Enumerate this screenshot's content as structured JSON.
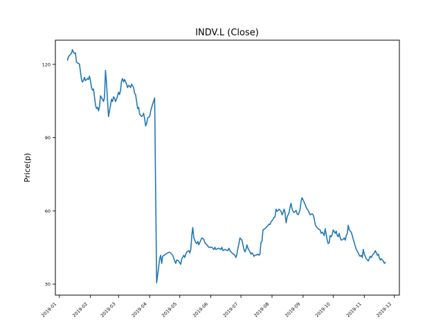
{
  "chart_data": {
    "type": "line",
    "title": "INDV.L (Close)",
    "xlabel": "",
    "ylabel": "Price(p)",
    "legend": "none",
    "grid": false,
    "background_color": "#ffffff",
    "line_color": "#1f77b4",
    "spine_color": "#000000",
    "ylim": [
      25.5,
      129.9
    ],
    "yticks": [
      30,
      60,
      90,
      120
    ],
    "ytick_labels": [
      "30",
      "60",
      "90",
      "120"
    ],
    "xlim": [
      "2018-12-28",
      "2019-12-06"
    ],
    "xticks": [
      "2019-01-01",
      "2019-02-01",
      "2019-03-01",
      "2019-04-01",
      "2019-05-01",
      "2019-06-01",
      "2019-07-01",
      "2019-08-01",
      "2019-09-01",
      "2019-10-01",
      "2019-11-01",
      "2019-12-01"
    ],
    "xtick_labels": [
      "2019-01",
      "2019-02",
      "2019-03",
      "2019-04",
      "2019-05",
      "2019-06",
      "2019-07",
      "2019-08",
      "2019-09",
      "2019-10",
      "2019-11",
      "2019-12"
    ],
    "xtick_rotation": 45,
    "points": [
      [
        "2019-01-09",
        121.7
      ],
      [
        "2019-01-10",
        123.1
      ],
      [
        "2019-01-11",
        123.6
      ],
      [
        "2019-01-13",
        124.5
      ],
      [
        "2019-01-14",
        126.0
      ],
      [
        "2019-01-15",
        125.0
      ],
      [
        "2019-01-16",
        124.5
      ],
      [
        "2019-01-17",
        124.7
      ],
      [
        "2019-01-18",
        121.0
      ],
      [
        "2019-01-19",
        120.6
      ],
      [
        "2019-01-21",
        120.1
      ],
      [
        "2019-01-22",
        117.0
      ],
      [
        "2019-01-23",
        113.9
      ],
      [
        "2019-01-24",
        112.7
      ],
      [
        "2019-01-25",
        113.5
      ],
      [
        "2019-01-26",
        114.7
      ],
      [
        "2019-01-27",
        113.3
      ],
      [
        "2019-01-29",
        114.2
      ],
      [
        "2019-01-30",
        113.8
      ],
      [
        "2019-01-31",
        115.2
      ],
      [
        "2019-02-01",
        113.3
      ],
      [
        "2019-02-02",
        110.5
      ],
      [
        "2019-02-03",
        109.5
      ],
      [
        "2019-02-04",
        109.9
      ],
      [
        "2019-02-06",
        103.3
      ],
      [
        "2019-02-07",
        101.9
      ],
      [
        "2019-02-08",
        102.4
      ],
      [
        "2019-02-09",
        101.0
      ],
      [
        "2019-02-10",
        102.9
      ],
      [
        "2019-02-11",
        107.1
      ],
      [
        "2019-02-13",
        105.7
      ],
      [
        "2019-02-14",
        104.8
      ],
      [
        "2019-02-15",
        106.7
      ],
      [
        "2019-02-16",
        117.5
      ],
      [
        "2019-02-17",
        112.3
      ],
      [
        "2019-02-18",
        105.4
      ],
      [
        "2019-02-19",
        98.6
      ],
      [
        "2019-02-20",
        101.0
      ],
      [
        "2019-02-21",
        103.3
      ],
      [
        "2019-02-22",
        105.7
      ],
      [
        "2019-02-23",
        104.8
      ],
      [
        "2019-02-24",
        106.7
      ],
      [
        "2019-02-25",
        106.2
      ],
      [
        "2019-02-26",
        104.8
      ],
      [
        "2019-02-27",
        105.7
      ],
      [
        "2019-03-01",
        108.6
      ],
      [
        "2019-03-02",
        107.6
      ],
      [
        "2019-03-03",
        109.5
      ],
      [
        "2019-03-04",
        113.3
      ],
      [
        "2019-03-05",
        114.2
      ],
      [
        "2019-03-06",
        112.8
      ],
      [
        "2019-03-07",
        113.8
      ],
      [
        "2019-03-09",
        111.9
      ],
      [
        "2019-03-10",
        110.5
      ],
      [
        "2019-03-11",
        111.4
      ],
      [
        "2019-03-12",
        111.1
      ],
      [
        "2019-03-13",
        110.5
      ],
      [
        "2019-03-14",
        111.9
      ],
      [
        "2019-03-16",
        110.5
      ],
      [
        "2019-03-17",
        108.1
      ],
      [
        "2019-03-18",
        107.6
      ],
      [
        "2019-03-19",
        104.8
      ],
      [
        "2019-03-20",
        101.9
      ],
      [
        "2019-03-21",
        102.4
      ],
      [
        "2019-03-22",
        99.6
      ],
      [
        "2019-03-24",
        98.6
      ],
      [
        "2019-03-25",
        99.1
      ],
      [
        "2019-03-26",
        100.0
      ],
      [
        "2019-03-27",
        97.7
      ],
      [
        "2019-03-28",
        94.8
      ],
      [
        "2019-03-29",
        95.8
      ],
      [
        "2019-03-30",
        98.1
      ],
      [
        "2019-04-01",
        98.6
      ],
      [
        "2019-04-02",
        101.0
      ],
      [
        "2019-04-04",
        103.8
      ],
      [
        "2019-04-06",
        106.2
      ],
      [
        "2019-04-08",
        30.5
      ],
      [
        "2019-04-11",
        40.4
      ],
      [
        "2019-04-12",
        41.8
      ],
      [
        "2019-04-13",
        38.5
      ],
      [
        "2019-04-14",
        41.4
      ],
      [
        "2019-04-17",
        42.3
      ],
      [
        "2019-04-19",
        42.8
      ],
      [
        "2019-04-21",
        43.1
      ],
      [
        "2019-04-24",
        41.8
      ],
      [
        "2019-04-26",
        39.5
      ],
      [
        "2019-04-27",
        38.5
      ],
      [
        "2019-04-28",
        39.9
      ],
      [
        "2019-04-30",
        39.5
      ],
      [
        "2019-05-02",
        38.1
      ],
      [
        "2019-05-03",
        40.4
      ],
      [
        "2019-05-05",
        41.8
      ],
      [
        "2019-05-06",
        40.9
      ],
      [
        "2019-05-07",
        42.3
      ],
      [
        "2019-05-08",
        43.2
      ],
      [
        "2019-05-10",
        43.7
      ],
      [
        "2019-05-11",
        42.8
      ],
      [
        "2019-05-12",
        44.2
      ],
      [
        "2019-05-13",
        49.9
      ],
      [
        "2019-05-14",
        53.2
      ],
      [
        "2019-05-15",
        48.9
      ],
      [
        "2019-05-17",
        47.0
      ],
      [
        "2019-05-18",
        46.6
      ],
      [
        "2019-05-19",
        47.5
      ],
      [
        "2019-05-20",
        46.1
      ],
      [
        "2019-05-22",
        48.0
      ],
      [
        "2019-05-23",
        48.9
      ],
      [
        "2019-05-25",
        48.4
      ],
      [
        "2019-05-26",
        47.0
      ],
      [
        "2019-05-28",
        46.1
      ],
      [
        "2019-05-30",
        45.1
      ],
      [
        "2019-06-02",
        45.1
      ],
      [
        "2019-06-04",
        44.2
      ],
      [
        "2019-06-05",
        45.1
      ],
      [
        "2019-06-06",
        44.2
      ],
      [
        "2019-06-09",
        44.7
      ],
      [
        "2019-06-11",
        44.2
      ],
      [
        "2019-06-12",
        45.1
      ],
      [
        "2019-06-13",
        43.7
      ],
      [
        "2019-06-15",
        44.2
      ],
      [
        "2019-06-18",
        43.7
      ],
      [
        "2019-06-19",
        44.7
      ],
      [
        "2019-06-20",
        43.7
      ],
      [
        "2019-06-22",
        42.8
      ],
      [
        "2019-06-25",
        41.8
      ],
      [
        "2019-06-26",
        40.9
      ],
      [
        "2019-06-27",
        42.3
      ],
      [
        "2019-06-28",
        44.7
      ],
      [
        "2019-06-29",
        46.6
      ],
      [
        "2019-06-30",
        48.9
      ],
      [
        "2019-07-02",
        48.0
      ],
      [
        "2019-07-03",
        46.1
      ],
      [
        "2019-07-04",
        44.2
      ],
      [
        "2019-07-05",
        43.2
      ],
      [
        "2019-07-06",
        44.2
      ],
      [
        "2019-07-07",
        46.1
      ],
      [
        "2019-07-08",
        44.7
      ],
      [
        "2019-07-10",
        43.2
      ],
      [
        "2019-07-11",
        42.3
      ],
      [
        "2019-07-12",
        42.8
      ],
      [
        "2019-07-13",
        42.3
      ],
      [
        "2019-07-14",
        41.4
      ],
      [
        "2019-07-15",
        41.8
      ],
      [
        "2019-07-16",
        41.8
      ],
      [
        "2019-07-18",
        42.3
      ],
      [
        "2019-07-19",
        41.8
      ],
      [
        "2019-07-20",
        42.3
      ],
      [
        "2019-07-21",
        47.0
      ],
      [
        "2019-07-22",
        47.5
      ],
      [
        "2019-07-23",
        52.2
      ],
      [
        "2019-07-25",
        52.7
      ],
      [
        "2019-07-26",
        53.2
      ],
      [
        "2019-07-27",
        53.6
      ],
      [
        "2019-07-28",
        54.1
      ],
      [
        "2019-07-29",
        54.6
      ],
      [
        "2019-07-30",
        54.4
      ],
      [
        "2019-07-31",
        55.5
      ],
      [
        "2019-08-02",
        56.5
      ],
      [
        "2019-08-03",
        57.4
      ],
      [
        "2019-08-04",
        57.6
      ],
      [
        "2019-08-05",
        60.7
      ],
      [
        "2019-08-06",
        59.8
      ],
      [
        "2019-08-07",
        60.2
      ],
      [
        "2019-08-08",
        60.7
      ],
      [
        "2019-08-10",
        59.8
      ],
      [
        "2019-08-11",
        58.4
      ],
      [
        "2019-08-12",
        59.3
      ],
      [
        "2019-08-13",
        60.7
      ],
      [
        "2019-08-14",
        59.3
      ],
      [
        "2019-08-15",
        55.1
      ],
      [
        "2019-08-16",
        57.4
      ],
      [
        "2019-08-18",
        59.3
      ],
      [
        "2019-08-19",
        61.6
      ],
      [
        "2019-08-20",
        63.1
      ],
      [
        "2019-08-21",
        60.7
      ],
      [
        "2019-08-22",
        59.8
      ],
      [
        "2019-08-23",
        59.3
      ],
      [
        "2019-08-25",
        60.2
      ],
      [
        "2019-08-26",
        58.8
      ],
      [
        "2019-08-27",
        58.4
      ],
      [
        "2019-08-28",
        59.3
      ],
      [
        "2019-08-29",
        60.7
      ],
      [
        "2019-08-30",
        64.0
      ],
      [
        "2019-08-31",
        65.4
      ],
      [
        "2019-09-02",
        63.6
      ],
      [
        "2019-09-03",
        62.6
      ],
      [
        "2019-09-04",
        61.6
      ],
      [
        "2019-09-05",
        60.7
      ],
      [
        "2019-09-06",
        60.2
      ],
      [
        "2019-09-07",
        59.3
      ],
      [
        "2019-09-08",
        58.4
      ],
      [
        "2019-09-10",
        58.8
      ],
      [
        "2019-09-11",
        58.4
      ],
      [
        "2019-09-12",
        57.0
      ],
      [
        "2019-09-13",
        54.6
      ],
      [
        "2019-09-14",
        53.6
      ],
      [
        "2019-09-15",
        53.2
      ],
      [
        "2019-09-16",
        52.7
      ],
      [
        "2019-09-18",
        52.2
      ],
      [
        "2019-09-19",
        50.8
      ],
      [
        "2019-09-20",
        51.3
      ],
      [
        "2019-09-21",
        50.8
      ],
      [
        "2019-09-22",
        49.9
      ],
      [
        "2019-09-23",
        52.7
      ],
      [
        "2019-09-25",
        48.0
      ],
      [
        "2019-09-26",
        46.6
      ],
      [
        "2019-09-27",
        47.0
      ],
      [
        "2019-09-28",
        49.9
      ],
      [
        "2019-09-29",
        49.4
      ],
      [
        "2019-09-30",
        50.3
      ],
      [
        "2019-10-01",
        52.2
      ],
      [
        "2019-10-03",
        50.8
      ],
      [
        "2019-10-04",
        51.7
      ],
      [
        "2019-10-05",
        49.9
      ],
      [
        "2019-10-06",
        49.4
      ],
      [
        "2019-10-07",
        50.8
      ],
      [
        "2019-10-08",
        48.9
      ],
      [
        "2019-10-09",
        48.0
      ],
      [
        "2019-10-11",
        48.4
      ],
      [
        "2019-10-12",
        48.9
      ],
      [
        "2019-10-13",
        48.0
      ],
      [
        "2019-10-14",
        49.9
      ],
      [
        "2019-10-15",
        50.8
      ],
      [
        "2019-10-16",
        54.1
      ],
      [
        "2019-10-17",
        52.2
      ],
      [
        "2019-10-19",
        51.3
      ],
      [
        "2019-10-20",
        49.9
      ],
      [
        "2019-10-21",
        48.4
      ],
      [
        "2019-10-22",
        47.0
      ],
      [
        "2019-10-23",
        45.6
      ],
      [
        "2019-10-24",
        44.2
      ],
      [
        "2019-10-26",
        42.8
      ],
      [
        "2019-10-27",
        41.8
      ],
      [
        "2019-10-28",
        41.4
      ],
      [
        "2019-10-29",
        41.8
      ],
      [
        "2019-10-30",
        40.9
      ],
      [
        "2019-10-31",
        44.2
      ],
      [
        "2019-11-01",
        42.3
      ],
      [
        "2019-11-03",
        40.4
      ],
      [
        "2019-11-04",
        39.9
      ],
      [
        "2019-11-05",
        39.5
      ],
      [
        "2019-11-06",
        40.4
      ],
      [
        "2019-11-07",
        41.4
      ],
      [
        "2019-11-08",
        40.9
      ],
      [
        "2019-11-09",
        41.8
      ],
      [
        "2019-11-11",
        42.8
      ],
      [
        "2019-11-12",
        43.7
      ],
      [
        "2019-11-13",
        42.8
      ],
      [
        "2019-11-14",
        41.8
      ],
      [
        "2019-11-15",
        42.3
      ],
      [
        "2019-11-16",
        40.9
      ],
      [
        "2019-11-17",
        39.9
      ],
      [
        "2019-11-18",
        40.4
      ],
      [
        "2019-11-20",
        39.5
      ],
      [
        "2019-11-21",
        38.5
      ],
      [
        "2019-11-22",
        38.9
      ]
    ]
  }
}
